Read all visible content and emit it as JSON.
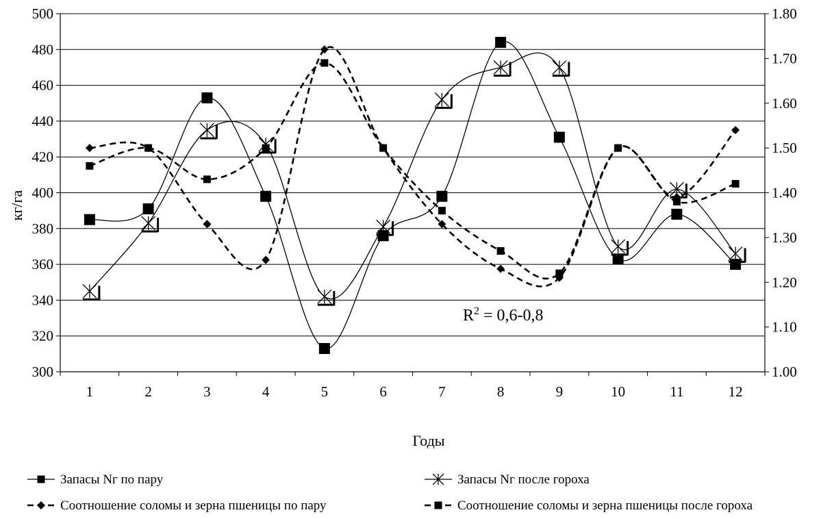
{
  "chart_data": {
    "type": "line",
    "title": "",
    "xlabel": "Годы",
    "ylabel_left": "кг/га",
    "ylabel_right": "",
    "categories": [
      "1",
      "2",
      "3",
      "4",
      "5",
      "6",
      "7",
      "8",
      "9",
      "10",
      "11",
      "12"
    ],
    "y_left": {
      "range": [
        300,
        500
      ],
      "ticks": [
        "300",
        "320",
        "340",
        "360",
        "380",
        "400",
        "420",
        "440",
        "460",
        "480",
        "500"
      ]
    },
    "y_right": {
      "range": [
        1.0,
        1.8
      ],
      "ticks": [
        "1.00",
        "1.10",
        "1.20",
        "1.30",
        "1.40",
        "1.50",
        "1.60",
        "1.70",
        "1.80"
      ]
    },
    "grid": "horizontal",
    "legend_position": "bottom",
    "series": [
      {
        "name": "Запасы Nг по пару",
        "axis": "left",
        "line": "solid",
        "marker": "square",
        "values": [
          385,
          391,
          453,
          398,
          313,
          376,
          398,
          484,
          431,
          363,
          388,
          360
        ]
      },
      {
        "name": "Запасы Nг после гороха",
        "axis": "left",
        "line": "solid",
        "marker": "star",
        "values": [
          345,
          383,
          435,
          427,
          342,
          381,
          452,
          470,
          470,
          370,
          402,
          366
        ]
      },
      {
        "name": "Соотношение соломы и зерна пшеницы по пару",
        "axis": "right",
        "line": "dashed",
        "marker": "diamond",
        "values": [
          1.5,
          1.5,
          1.33,
          1.25,
          1.72,
          1.5,
          1.33,
          1.23,
          1.21,
          1.5,
          1.39,
          1.54
        ]
      },
      {
        "name": "Соотношение соломы и зерна пшеницы после гороха",
        "axis": "right",
        "line": "dashed",
        "marker": "square-small",
        "values": [
          1.46,
          1.5,
          1.43,
          1.5,
          1.69,
          1.5,
          1.36,
          1.27,
          1.22,
          1.5,
          1.38,
          1.42
        ]
      }
    ],
    "annotation": {
      "text_main": "R",
      "text_sup": "2",
      "text_rest": " = 0,6-0,8"
    }
  }
}
